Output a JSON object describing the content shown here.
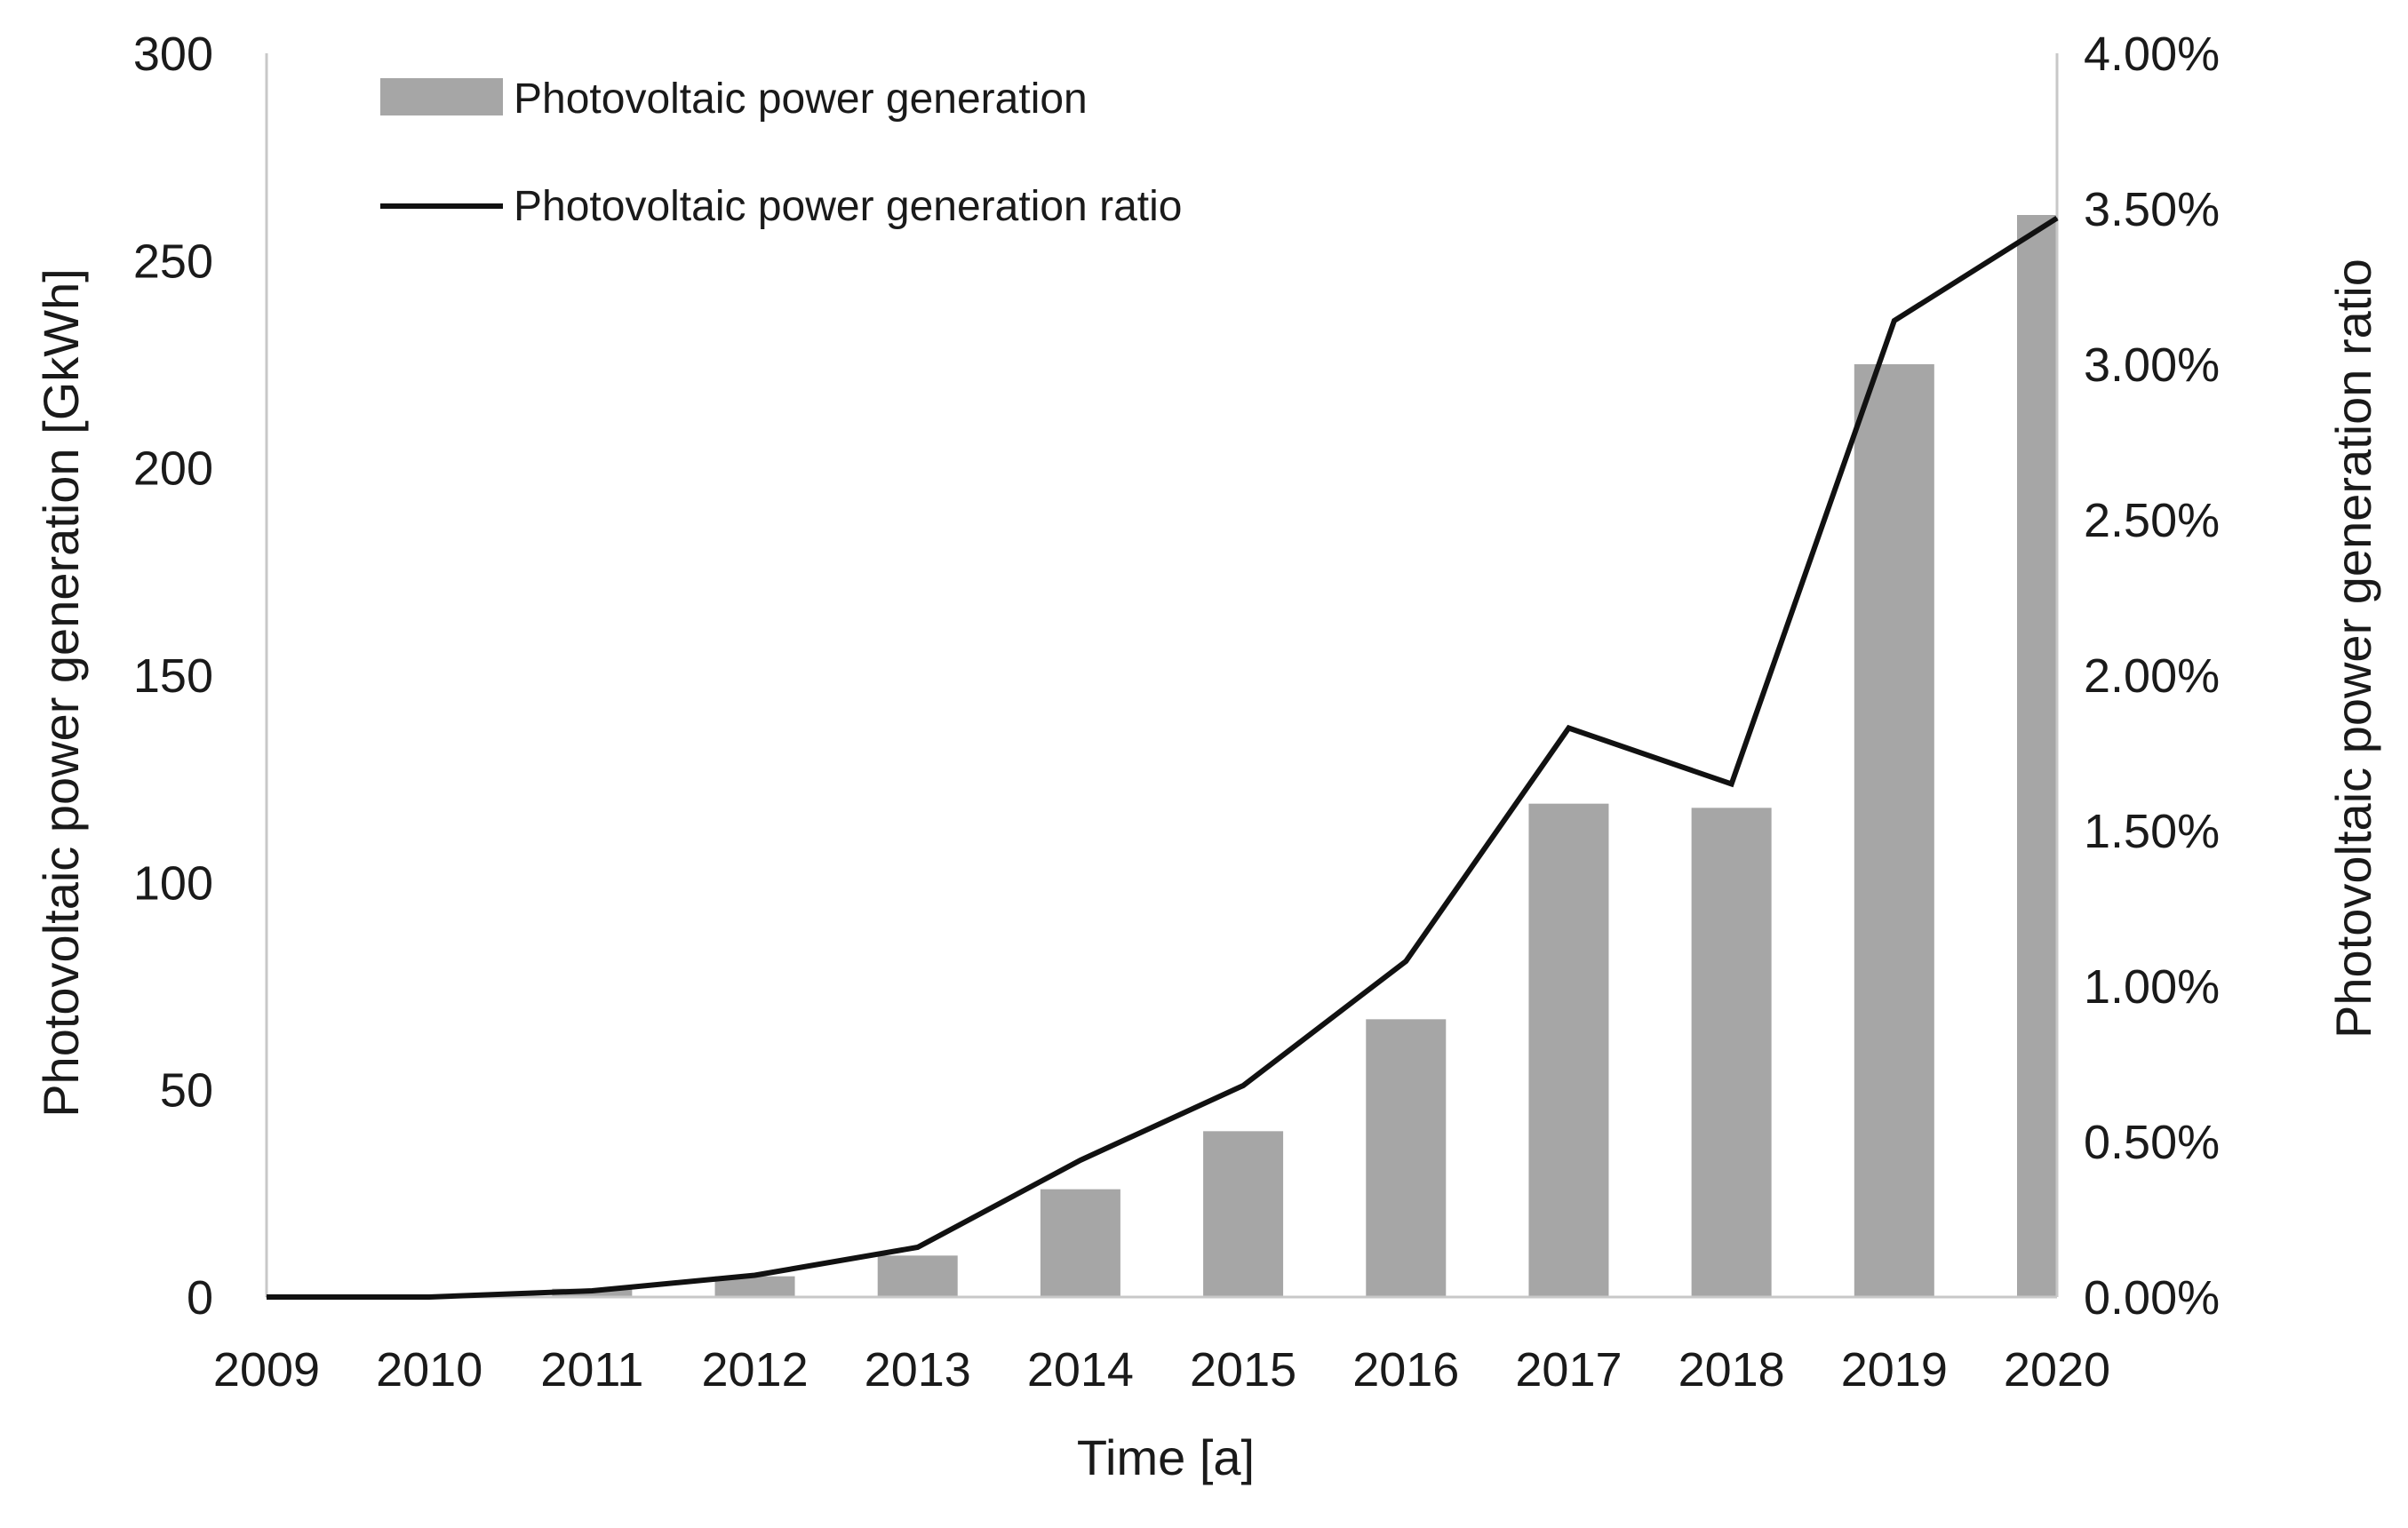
{
  "chart_data": {
    "type": "bar+line",
    "categories": [
      "2009",
      "2010",
      "2011",
      "2012",
      "2013",
      "2014",
      "2015",
      "2016",
      "2017",
      "2018",
      "2019",
      "2020"
    ],
    "series": [
      {
        "name": "Photovoltaic power generation",
        "kind": "bar",
        "axis": "left",
        "color": "#a6a6a6",
        "values": [
          0,
          0.5,
          2,
          5,
          10,
          26,
          40,
          67,
          119,
          118,
          225,
          261
        ]
      },
      {
        "name": "Photovoltaic power generation ratio",
        "kind": "line",
        "axis": "right",
        "color": "#111111",
        "values": [
          0.0,
          0.0,
          0.02,
          0.07,
          0.16,
          0.44,
          0.68,
          1.08,
          1.83,
          1.65,
          3.14,
          3.47
        ]
      }
    ],
    "xlabel": "Time [a]",
    "ylabel": "Photovoltaic power generation [GkWh]",
    "y2label": "Photovoltaic power generation ratio",
    "ylim": [
      0,
      300
    ],
    "y2lim": [
      0,
      4
    ],
    "yticks": [
      "0",
      "50",
      "100",
      "150",
      "200",
      "250",
      "300"
    ],
    "y2ticks": [
      "0.00%",
      "0.50%",
      "1.00%",
      "1.50%",
      "2.00%",
      "2.50%",
      "3.00%",
      "3.50%",
      "4.00%"
    ],
    "legend_position": "top-left",
    "grid": false
  }
}
